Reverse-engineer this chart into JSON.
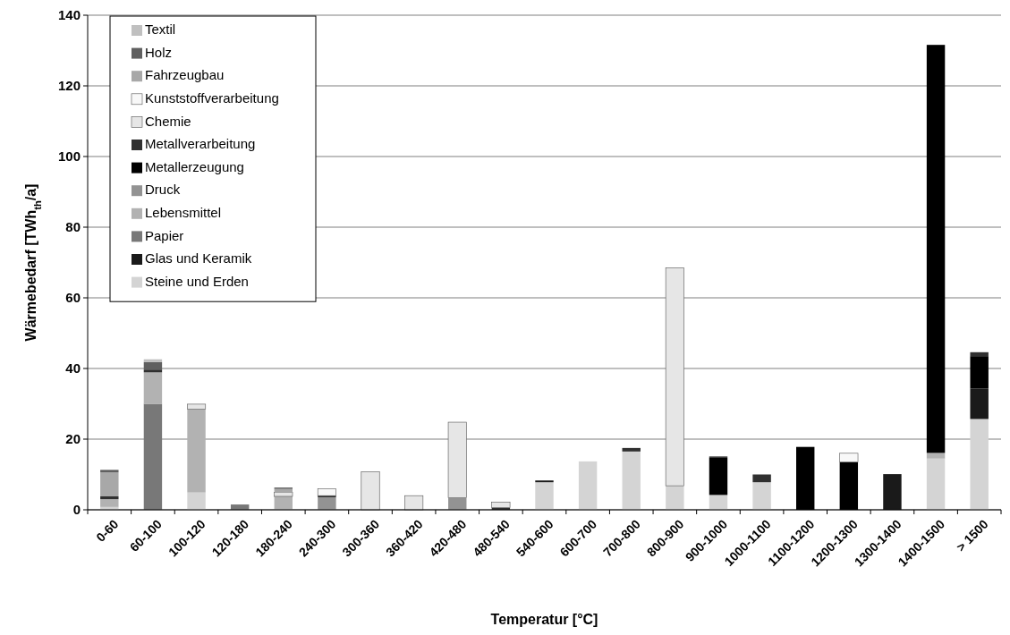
{
  "chart_data": {
    "type": "bar",
    "stacked": true,
    "xlabel": "Temperatur [°C]",
    "ylabel": "Wärmebedarf [TWh$_{th}$/a]",
    "categories": [
      "0-60",
      "60-100",
      "100-120",
      "120-180",
      "180-240",
      "240-300",
      "300-360",
      "360-420",
      "420-480",
      "480-540",
      "540-600",
      "600-700",
      "700-800",
      "800-900",
      "900-1000",
      "1000-1100",
      "1100-1200",
      "1200-1300",
      "1300-1400",
      "1400-1500",
      "> 1500"
    ],
    "ylim": [
      0,
      140
    ],
    "yticks": [
      0,
      20,
      40,
      60,
      80,
      100,
      120,
      140
    ],
    "grid": "y",
    "legend": "top left",
    "series": [
      {
        "name": "Steine und Erden",
        "color": "#d4d4d4",
        "values": [
          0.8,
          0,
          4.9,
          0,
          0,
          0,
          0,
          0,
          0,
          0,
          7.8,
          13.7,
          16.5,
          6.8,
          4.2,
          7.8,
          0,
          0,
          0,
          14.5,
          25.7
        ]
      },
      {
        "name": "Glas und Keramik",
        "color": "#1a1a1a",
        "values": [
          0,
          0,
          0,
          0,
          0,
          0,
          0,
          0,
          0,
          0,
          0.5,
          0,
          0,
          0,
          0,
          0,
          0,
          0,
          10.1,
          0,
          8.6
        ]
      },
      {
        "name": "Papier",
        "color": "#787878",
        "values": [
          0,
          30,
          0,
          1.5,
          0,
          0,
          0,
          0,
          0,
          0,
          0,
          0,
          0,
          0,
          0,
          0,
          0,
          0,
          0,
          0,
          0
        ]
      },
      {
        "name": "Lebensmittel",
        "color": "#b2b2b2",
        "values": [
          2.2,
          8.9,
          23.6,
          0,
          3.8,
          0,
          0,
          0,
          0,
          0,
          0,
          0,
          0,
          0,
          0,
          0,
          0,
          0,
          0,
          1.6,
          0
        ]
      },
      {
        "name": "Druck",
        "color": "#939393",
        "values": [
          0,
          0,
          0,
          0,
          0,
          3.6,
          0,
          0,
          3.4,
          0,
          0,
          0,
          0,
          0,
          0,
          0,
          0,
          0,
          0,
          0,
          0
        ]
      },
      {
        "name": "Metallerzeugung",
        "color": "#000000",
        "values": [
          0,
          0,
          0,
          0,
          0,
          0.4,
          0,
          0,
          0,
          0,
          0,
          0,
          0,
          0,
          10.5,
          0,
          17.8,
          13.5,
          0,
          115.5,
          9.2
        ]
      },
      {
        "name": "Metallverarbeitung",
        "color": "#303030",
        "values": [
          0.8,
          0.8,
          0,
          0,
          0,
          0,
          0,
          0,
          0,
          0.6,
          0,
          0,
          1.0,
          0,
          0.4,
          2.2,
          0,
          0,
          0,
          0,
          1.1
        ]
      },
      {
        "name": "Chemie",
        "color": "#e6e6e6",
        "values": [
          0,
          0,
          1.4,
          0,
          1.1,
          0,
          10.8,
          4.0,
          21.4,
          1.6,
          0,
          0,
          0,
          61.7,
          0,
          0,
          0,
          0,
          0,
          0,
          0
        ]
      },
      {
        "name": "Kunststoffverarbeitung",
        "color": "#f8f8f8",
        "values": [
          0,
          0,
          0,
          0,
          0,
          1.9,
          0,
          0,
          0,
          0,
          0,
          0,
          0,
          0,
          0,
          0,
          0,
          2.5,
          0,
          0,
          0
        ]
      },
      {
        "name": "Fahrzeugbau",
        "color": "#a8a8a8",
        "values": [
          6.8,
          0,
          0,
          0,
          1.0,
          0,
          0,
          0,
          0,
          0,
          0,
          0,
          0,
          0,
          0,
          0,
          0,
          0,
          0,
          0,
          0
        ]
      },
      {
        "name": "Holz",
        "color": "#606060",
        "values": [
          0.7,
          2.1,
          0,
          0,
          0.4,
          0,
          0,
          0,
          0,
          0,
          0,
          0,
          0,
          0,
          0,
          0,
          0,
          0,
          0,
          0,
          0
        ]
      },
      {
        "name": "Textil",
        "color": "#c0c0c0",
        "values": [
          0,
          0.8,
          0,
          0,
          0,
          0,
          0,
          0,
          0,
          0,
          0,
          0,
          0,
          0,
          0,
          0,
          0,
          0,
          0,
          0,
          0
        ]
      }
    ]
  }
}
